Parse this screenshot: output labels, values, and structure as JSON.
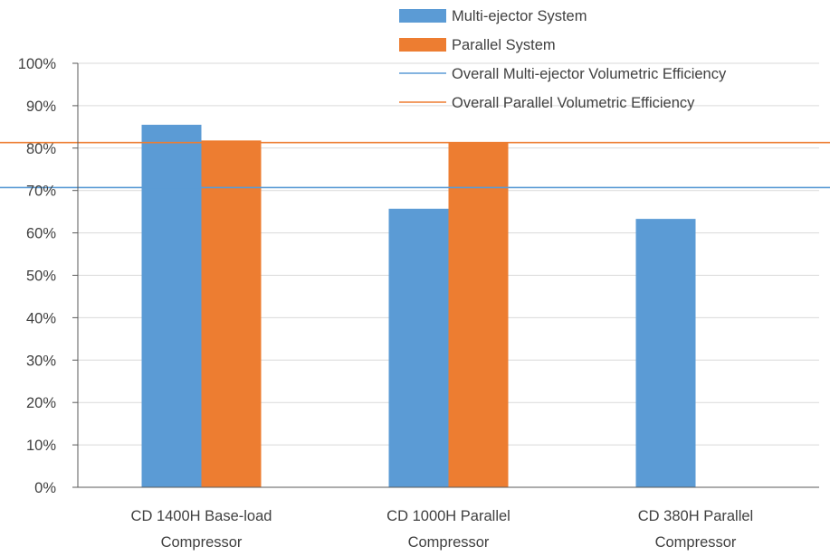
{
  "chart_data": {
    "type": "bar",
    "categories": [
      [
        "CD 1400H  Base-load",
        "Compressor"
      ],
      [
        "CD 1000H  Parallel",
        "Compressor"
      ],
      [
        "CD 380H  Parallel",
        "Compressor"
      ]
    ],
    "series": [
      {
        "name": "Multi-ejector System",
        "color": "#5b9bd5",
        "values": [
          0.855,
          0.657,
          0.633
        ]
      },
      {
        "name": "Parallel System",
        "color": "#ed7d31",
        "values": [
          0.818,
          0.812,
          null
        ]
      }
    ],
    "reference_lines": [
      {
        "name": "Overall Multi-ejector Volumetric Efficiency",
        "color": "#5b9bd5",
        "value": 0.707
      },
      {
        "name": "Overall Parallel Volumetric Efficiency",
        "color": "#ed7d31",
        "value": 0.813
      }
    ],
    "y_ticks": [
      "0%",
      "10%",
      "20%",
      "30%",
      "40%",
      "50%",
      "60%",
      "70%",
      "80%",
      "90%",
      "100%"
    ],
    "ylim": [
      0,
      1
    ],
    "grid": true,
    "legend_position": "top-right"
  }
}
